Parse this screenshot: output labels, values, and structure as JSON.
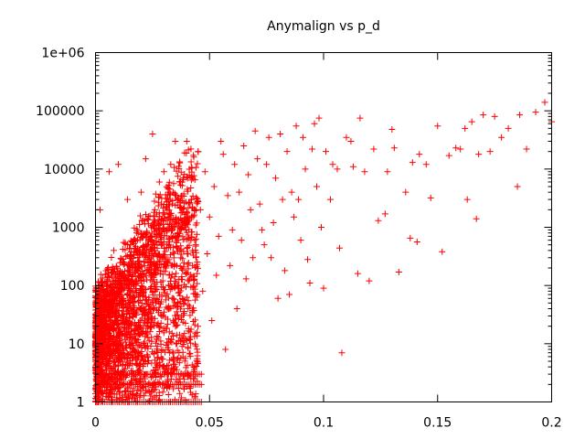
{
  "chart_data": {
    "type": "scatter",
    "title": "Anymalign vs p_d",
    "xlabel": "",
    "ylabel": "",
    "x_scale": "linear",
    "y_scale": "log",
    "xlim": [
      0,
      0.2
    ],
    "ylim": [
      1,
      1000000
    ],
    "x_ticks": [
      0,
      0.05,
      0.1,
      0.15,
      0.2
    ],
    "x_tick_labels": [
      "0",
      "0.05",
      "0.1",
      "0.15",
      "0.2"
    ],
    "y_ticks": [
      1,
      10,
      100,
      1000,
      10000,
      100000,
      1000000
    ],
    "y_tick_labels": [
      "1",
      "10",
      "100",
      "1000",
      "10000",
      "100000",
      "1e+06"
    ],
    "grid": false,
    "legend": "none",
    "marker": "+",
    "color": "#ff0000",
    "series": [
      {
        "points": [
          [
            0.197,
            140000
          ],
          [
            0.2,
            65000
          ],
          [
            0.193,
            95000
          ],
          [
            0.186,
            85000
          ],
          [
            0.181,
            50000
          ],
          [
            0.178,
            35000
          ],
          [
            0.175,
            80000
          ],
          [
            0.173,
            20000
          ],
          [
            0.17,
            85000
          ],
          [
            0.168,
            18000
          ],
          [
            0.165,
            65000
          ],
          [
            0.163,
            3000
          ],
          [
            0.162,
            50000
          ],
          [
            0.167,
            1400
          ],
          [
            0.185,
            5000
          ],
          [
            0.189,
            22000
          ],
          [
            0.16,
            22000
          ],
          [
            0.158,
            23000
          ],
          [
            0.155,
            17000
          ],
          [
            0.152,
            380
          ],
          [
            0.15,
            55000
          ],
          [
            0.147,
            3200
          ],
          [
            0.145,
            12000
          ],
          [
            0.142,
            18000
          ],
          [
            0.141,
            560
          ],
          [
            0.139,
            13000
          ],
          [
            0.138,
            650
          ],
          [
            0.136,
            4000
          ],
          [
            0.133,
            170
          ],
          [
            0.131,
            23000
          ],
          [
            0.13,
            48000
          ],
          [
            0.128,
            9000
          ],
          [
            0.127,
            1700
          ],
          [
            0.124,
            1300
          ],
          [
            0.122,
            22000
          ],
          [
            0.12,
            120
          ],
          [
            0.118,
            9000
          ],
          [
            0.116,
            75000
          ],
          [
            0.115,
            160
          ],
          [
            0.113,
            11000
          ],
          [
            0.112,
            30000
          ],
          [
            0.11,
            35000
          ],
          [
            0.108,
            7
          ],
          [
            0.107,
            440
          ],
          [
            0.106,
            10000
          ],
          [
            0.104,
            12000
          ],
          [
            0.103,
            3000
          ],
          [
            0.101,
            20000
          ],
          [
            0.1,
            90
          ],
          [
            0.099,
            1000
          ],
          [
            0.098,
            75000
          ],
          [
            0.097,
            5000
          ],
          [
            0.096,
            60000
          ],
          [
            0.095,
            22000
          ],
          [
            0.094,
            110
          ],
          [
            0.093,
            280
          ],
          [
            0.092,
            10000
          ],
          [
            0.091,
            35000
          ],
          [
            0.09,
            600
          ],
          [
            0.089,
            3000
          ],
          [
            0.088,
            55000
          ],
          [
            0.087,
            1500
          ],
          [
            0.086,
            4000
          ],
          [
            0.085,
            70
          ],
          [
            0.084,
            20000
          ],
          [
            0.083,
            180
          ],
          [
            0.082,
            3000
          ],
          [
            0.081,
            40000
          ],
          [
            0.08,
            60
          ],
          [
            0.079,
            7000
          ],
          [
            0.078,
            1200
          ],
          [
            0.077,
            300
          ],
          [
            0.076,
            35000
          ],
          [
            0.075,
            12000
          ],
          [
            0.074,
            500
          ],
          [
            0.073,
            900
          ],
          [
            0.072,
            2500
          ],
          [
            0.071,
            15000
          ],
          [
            0.07,
            45000
          ],
          [
            0.069,
            300
          ],
          [
            0.068,
            2000
          ],
          [
            0.067,
            8000
          ],
          [
            0.066,
            130
          ],
          [
            0.065,
            25000
          ],
          [
            0.064,
            600
          ],
          [
            0.063,
            4000
          ],
          [
            0.062,
            40
          ],
          [
            0.061,
            12000
          ],
          [
            0.06,
            900
          ],
          [
            0.059,
            220
          ],
          [
            0.058,
            3500
          ],
          [
            0.057,
            8
          ],
          [
            0.056,
            18000
          ],
          [
            0.055,
            30000
          ],
          [
            0.054,
            700
          ],
          [
            0.053,
            150
          ],
          [
            0.052,
            5000
          ],
          [
            0.051,
            25
          ],
          [
            0.05,
            1500
          ],
          [
            0.049,
            350
          ],
          [
            0.048,
            9000
          ],
          [
            0.047,
            80
          ],
          [
            0.046,
            2000
          ],
          [
            0.045,
            20000
          ],
          [
            0.044,
            500
          ],
          [
            0.043,
            4
          ],
          [
            0.042,
            3000
          ],
          [
            0.041,
            120
          ],
          [
            0.04,
            30000
          ],
          [
            0.039,
            15
          ],
          [
            0.038,
            6000
          ],
          [
            0.037,
            400
          ],
          [
            0.036,
            800
          ],
          [
            0.035,
            30000
          ],
          [
            0.034,
            60
          ],
          [
            0.033,
            12000
          ],
          [
            0.032,
            4000
          ],
          [
            0.031,
            200
          ],
          [
            0.03,
            9000
          ],
          [
            0.029,
            30
          ],
          [
            0.028,
            6000
          ],
          [
            0.027,
            500
          ],
          [
            0.026,
            2000
          ],
          [
            0.025,
            40000
          ],
          [
            0.024,
            90
          ],
          [
            0.022,
            15000
          ],
          [
            0.02,
            4000
          ],
          [
            0.018,
            800
          ],
          [
            0.016,
            200
          ],
          [
            0.014,
            3000
          ],
          [
            0.012,
            60
          ],
          [
            0.01,
            12000
          ],
          [
            0.008,
            400
          ],
          [
            0.006,
            9000
          ],
          [
            0.004,
            30
          ],
          [
            0.002,
            2000
          ],
          [
            0.001,
            1
          ],
          [
            0.003,
            2
          ],
          [
            0.005,
            3
          ],
          [
            0.007,
            1
          ],
          [
            0.009,
            2
          ],
          [
            0.011,
            3
          ],
          [
            0.013,
            1
          ],
          [
            0.015,
            2
          ],
          [
            0.017,
            3
          ]
        ]
      }
    ]
  }
}
